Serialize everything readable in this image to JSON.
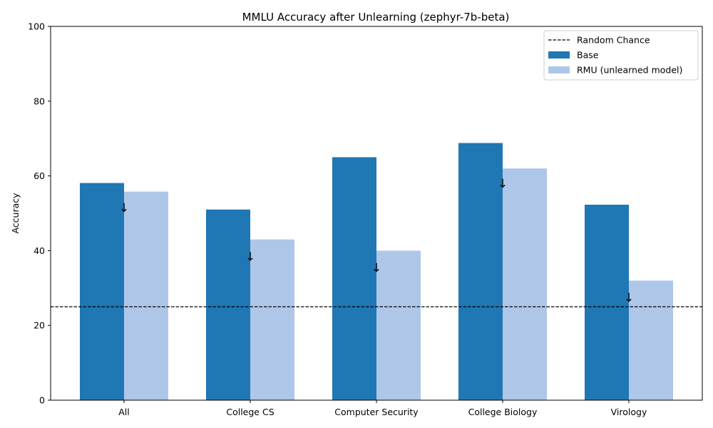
{
  "chart_data": {
    "type": "bar",
    "title": "MMLU Accuracy after Unlearning (zephyr-7b-beta)",
    "xlabel": "",
    "ylabel": "Accuracy",
    "ylim": [
      0,
      100
    ],
    "yticks": [
      0,
      20,
      40,
      60,
      80,
      100
    ],
    "categories": [
      "All",
      "College CS",
      "Computer Security",
      "College Biology",
      "Virology"
    ],
    "series": [
      {
        "name": "Base",
        "color": "#1f77b4",
        "values": [
          58.1,
          51.0,
          65.0,
          68.8,
          52.3
        ]
      },
      {
        "name": "RMU (unlearned model)",
        "color": "#aec7e8",
        "values": [
          55.8,
          43.0,
          40.0,
          62.0,
          32.0
        ]
      }
    ],
    "reference_line": {
      "name": "Random Chance",
      "value": 25,
      "style": "dashed",
      "color": "#000000"
    },
    "annotations": {
      "glyph": "↓",
      "y_values": [
        51.5,
        38.5,
        35.5,
        58.0,
        27.5
      ]
    },
    "legend": {
      "position": "top-right"
    },
    "grid": false
  }
}
